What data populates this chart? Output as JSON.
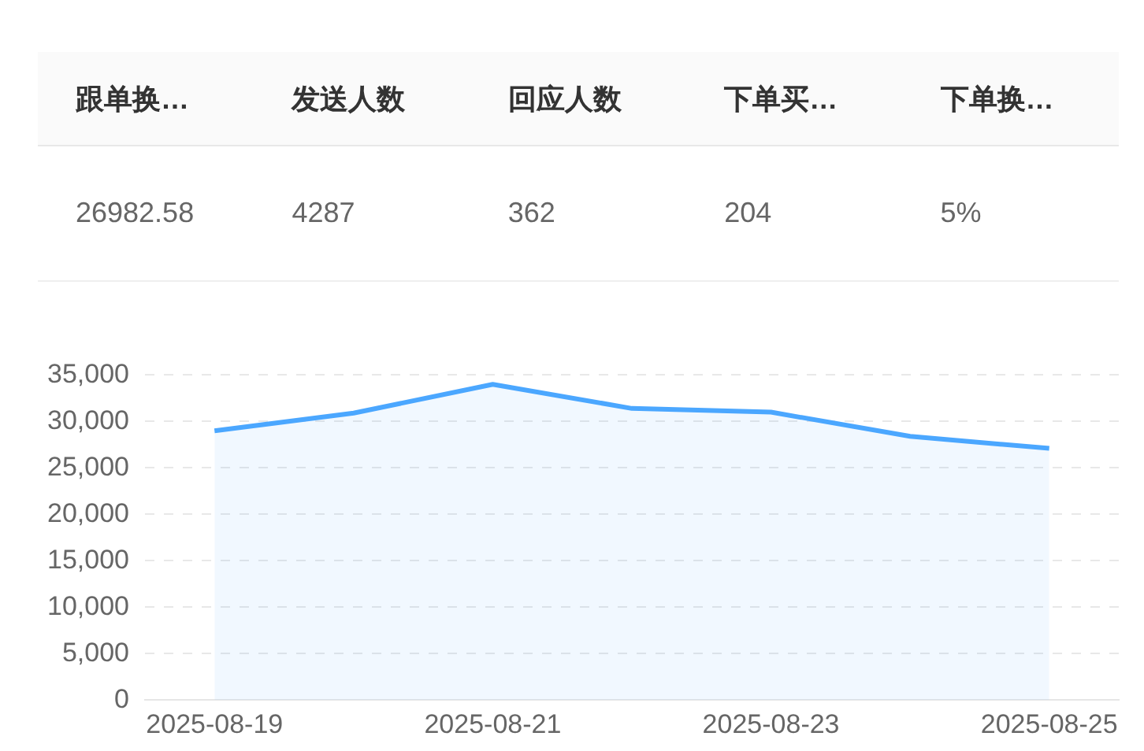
{
  "chart_data": [
    {
      "type": "other",
      "categories": [
        "跟单换…",
        "发送人数",
        "回应人数",
        "下单买…",
        "下单换…"
      ],
      "value_labels": [
        "26982.58",
        "4287",
        "362",
        "204",
        "5%"
      ]
    },
    {
      "type": "area",
      "categories": [
        "2025-08-19",
        null,
        "2025-08-21",
        null,
        "2025-08-23",
        null,
        "2025-08-25"
      ],
      "series": [
        {
          "color": "#4ba7ff",
          "values": [
            29000,
            30900,
            34000,
            31400,
            31000,
            28400,
            27100
          ]
        }
      ],
      "ylim": [
        0,
        35000
      ],
      "yticks": [
        0,
        {
          "value": 5000,
          "label": "5,000"
        },
        {
          "value": 10000,
          "label": "10,000"
        },
        {
          "value": 15000,
          "label": "15,000"
        },
        {
          "value": 20000,
          "label": "20,000"
        },
        {
          "value": 25000,
          "label": "25,000"
        },
        {
          "value": 30000,
          "label": "30,000"
        },
        {
          "value": 35000,
          "label": "35,000"
        }
      ],
      "grid": "y",
      "legend": false,
      "marker": "none",
      "line_style": "solid"
    }
  ]
}
